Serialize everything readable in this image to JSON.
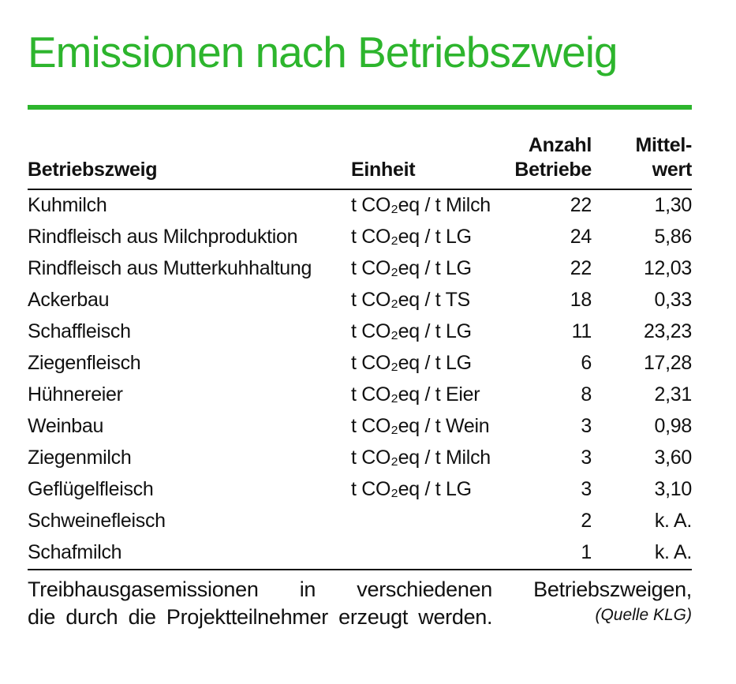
{
  "page": {
    "title": "Emissionen nach Betriebszweig",
    "accent_color": "#2db52d"
  },
  "table": {
    "headers": {
      "col1": "Betriebszweig",
      "col2": "Einheit",
      "col3_line1": "Anzahl",
      "col3_line2": "Betriebe",
      "col4_line1": "Mittel-",
      "col4_line2": "wert"
    },
    "rows": [
      {
        "betriebszweig": "Kuhmilch",
        "einheit": "t CO₂eq / t Milch",
        "anzahl": "22",
        "mittelwert": "1,30"
      },
      {
        "betriebszweig": "Rindfleisch aus Milchproduktion",
        "einheit": "t CO₂eq / t LG",
        "anzahl": "24",
        "mittelwert": "5,86"
      },
      {
        "betriebszweig": "Rindfleisch aus Mutterkuhhaltung",
        "einheit": "t CO₂eq / t LG",
        "anzahl": "22",
        "mittelwert": "12,03"
      },
      {
        "betriebszweig": "Ackerbau",
        "einheit": "t CO₂eq / t TS",
        "anzahl": "18",
        "mittelwert": "0,33"
      },
      {
        "betriebszweig": "Schaffleisch",
        "einheit": "t CO₂eq / t LG",
        "anzahl": "11",
        "mittelwert": "23,23"
      },
      {
        "betriebszweig": "Ziegenfleisch",
        "einheit": "t CO₂eq / t LG",
        "anzahl": "6",
        "mittelwert": "17,28"
      },
      {
        "betriebszweig": "Hühnereier",
        "einheit": "t CO₂eq / t Eier",
        "anzahl": "8",
        "mittelwert": "2,31"
      },
      {
        "betriebszweig": "Weinbau",
        "einheit": "t CO₂eq / t Wein",
        "anzahl": "3",
        "mittelwert": "0,98"
      },
      {
        "betriebszweig": "Ziegenmilch",
        "einheit": "t CO₂eq / t Milch",
        "anzahl": "3",
        "mittelwert": "3,60"
      },
      {
        "betriebszweig": "Geflügelfleisch",
        "einheit": "t CO₂eq / t LG",
        "anzahl": "3",
        "mittelwert": "3,10"
      },
      {
        "betriebszweig": "Schweinefleisch",
        "einheit": "",
        "anzahl": "2",
        "mittelwert": "k. A."
      },
      {
        "betriebszweig": "Schafmilch",
        "einheit": "",
        "anzahl": "1",
        "mittelwert": "k. A."
      }
    ]
  },
  "caption": {
    "line1": "Treibhausgasemissionen in verschiedenen Betriebszweigen,",
    "line2": "die durch die Projektteilnehmer erzeugt werden.",
    "source": "(Quelle KLG)"
  }
}
